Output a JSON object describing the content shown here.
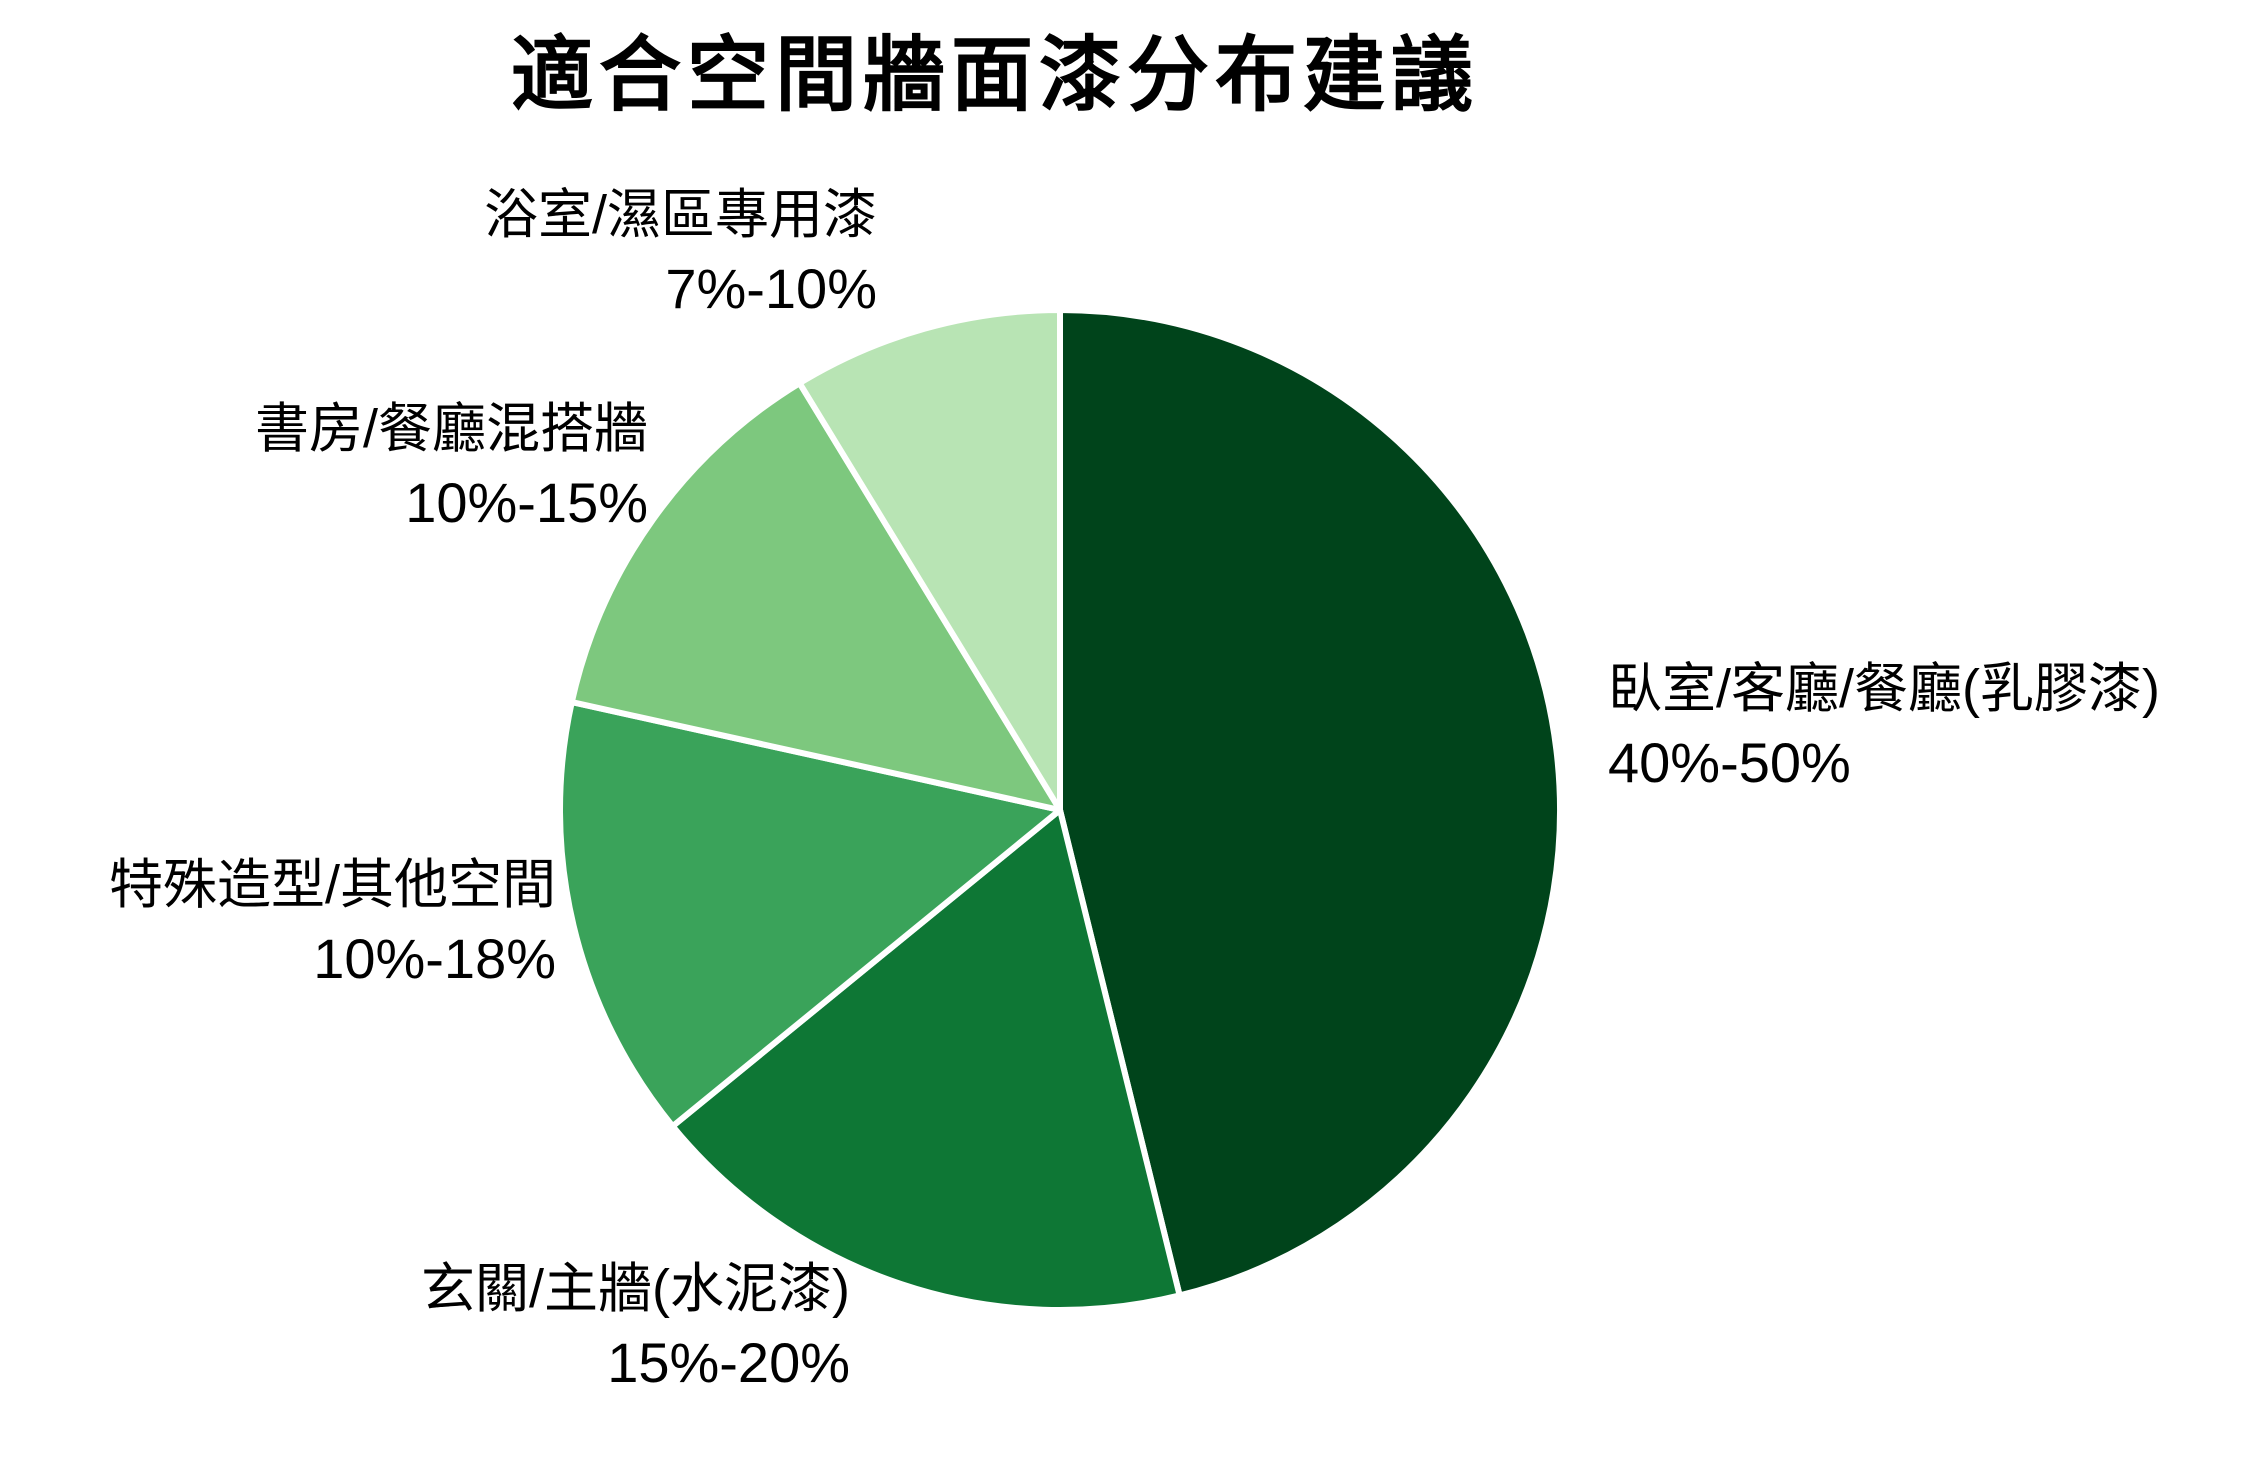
{
  "chart_data": {
    "type": "pie",
    "title": "適合空間牆面漆分布建議",
    "start_angle": "top",
    "direction": "clockwise",
    "background_color": "#ffffff",
    "divider_color": "#ffffff",
    "label_color": "#000000",
    "slices": [
      {
        "label": "臥室/客廳/餐廳(乳膠漆)",
        "range": "40%-50%",
        "value": 45,
        "color": "#00441b"
      },
      {
        "label": "玄關/主牆(水泥漆)",
        "range": "15%-20%",
        "value": 17.5,
        "color": "#0e7735"
      },
      {
        "label": "特殊造型/其他空間",
        "range": "10%-18%",
        "value": 14,
        "color": "#3aa35a"
      },
      {
        "label": "書房/餐廳混搭牆",
        "range": "10%-15%",
        "value": 12.5,
        "color": "#7dc87e"
      },
      {
        "label": "浴室/濕區專用漆",
        "range": "7%-10%",
        "value": 8.5,
        "color": "#b8e4b4"
      }
    ]
  }
}
